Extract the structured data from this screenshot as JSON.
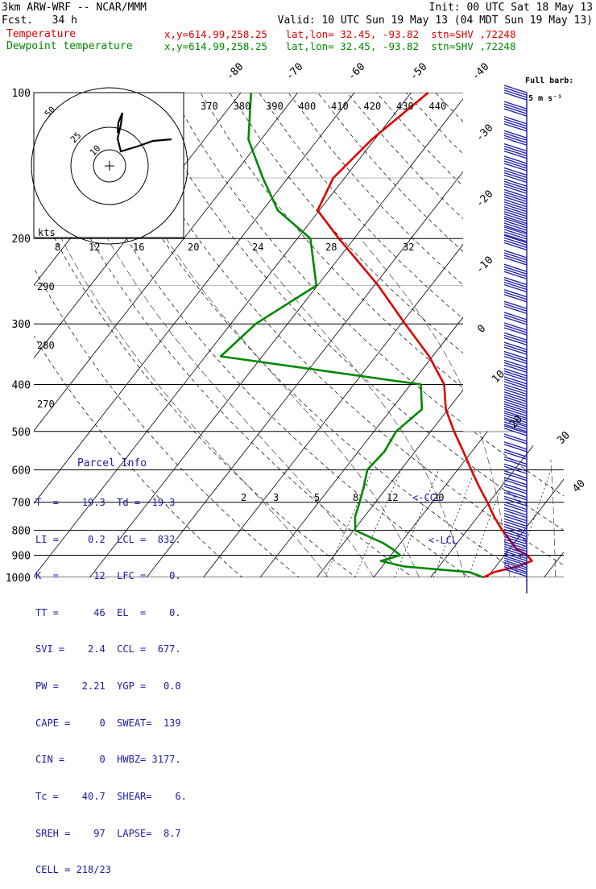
{
  "header": {
    "model": "3km ARW-WRF -- NCAR/MMM",
    "fcst": "Fcst.   34 h",
    "init": "Init: 00 UTC Sat 18 May 13",
    "valid": "Valid: 10 UTC Sun 19 May 13 (04 MDT Sun 19 May 13)",
    "temp_label": "Temperature",
    "temp_info": "x,y=614.99,258.25   lat,lon= 32.45, -93.82  stn=SHV ,72248",
    "dew_label": "Dewpoint temperature",
    "dew_info": "x,y=614.99,258.25   lat,lon= 32.45, -93.82  stn=SHV ,72248"
  },
  "barb_legend": {
    "line1": "Full barb:",
    "line2": "5 m s⁻¹"
  },
  "parcel": {
    "title": "Parcel Info",
    "rows": [
      "T  =    19.3  Td =  19.3",
      "LI =     0.2  LCL =  832.",
      "K  =      12  LFC =    0.",
      "TT =      46  EL  =    0.",
      "SVI =    2.4  CCL =  677.",
      "PW =    2.21  YGP =   0.0",
      "CAPE =     0  SWEAT=  139",
      "CIN =      0  HWBZ= 3177.",
      "Tc =    40.7  SHEAR=    6.",
      "SREH =    97  LAPSE=  8.7",
      "CELL = 218/23"
    ]
  },
  "labels": {
    "kts": "kts",
    "ccl": "<-CCL",
    "lcl": "<-LCL"
  },
  "chart_data": {
    "type": "skew-T",
    "pressure_ticks": [
      100,
      200,
      300,
      400,
      500,
      600,
      700,
      800,
      900,
      1000
    ],
    "isotherm_labels": [
      -80,
      -70,
      -60,
      -50,
      -40,
      -30,
      -20,
      -10,
      0,
      10,
      20,
      30,
      40
    ],
    "theta_e_labels": [
      370,
      380,
      390,
      400,
      410,
      420,
      430,
      440
    ],
    "height_scale_labels": [
      "8",
      "12",
      "16",
      "20",
      "24",
      "28",
      "32"
    ],
    "dry_adiabat_labels": [
      290,
      280,
      270
    ],
    "mixing_ratio_labels": [
      "2",
      "3",
      "5",
      "8",
      "12",
      "20"
    ],
    "hodograph_ring_labels": [
      "10",
      "25",
      "50"
    ],
    "series": [
      {
        "name": "Temperature",
        "color": "#e00000",
        "p": [
          1000,
          975,
          950,
          925,
          900,
          875,
          850,
          800,
          750,
          700,
          650,
          600,
          550,
          500,
          450,
          400,
          350,
          300,
          250,
          200,
          175,
          150,
          125,
          100
        ],
        "t": [
          19.3,
          20.5,
          23.8,
          25.6,
          24.0,
          21.3,
          19.7,
          16.2,
          12.9,
          9.7,
          6.1,
          2.4,
          -1.5,
          -5.9,
          -10.4,
          -14.1,
          -20.6,
          -29.3,
          -39.3,
          -52.7,
          -60.3,
          -62.0,
          -60.5,
          -57.0
        ]
      },
      {
        "name": "Dewpoint temperature",
        "color": "#008800",
        "p": [
          1000,
          975,
          950,
          925,
          900,
          875,
          850,
          800,
          750,
          700,
          650,
          600,
          550,
          500,
          450,
          400,
          350,
          300,
          250,
          200,
          175,
          150,
          125,
          100
        ],
        "t": [
          19.3,
          16.1,
          4.0,
          -1.0,
          1.6,
          -0.5,
          -3.0,
          -9.7,
          -11.6,
          -12.8,
          -14.2,
          -15.9,
          -15.4,
          -16.1,
          -14.6,
          -18.2,
          -57.3,
          -55.6,
          -50.2,
          -57.7,
          -67.3,
          -74.4,
          -82.2,
          -88.2
        ]
      }
    ],
    "hodograph": {
      "rings_kts": [
        10,
        25,
        50
      ]
    }
  }
}
